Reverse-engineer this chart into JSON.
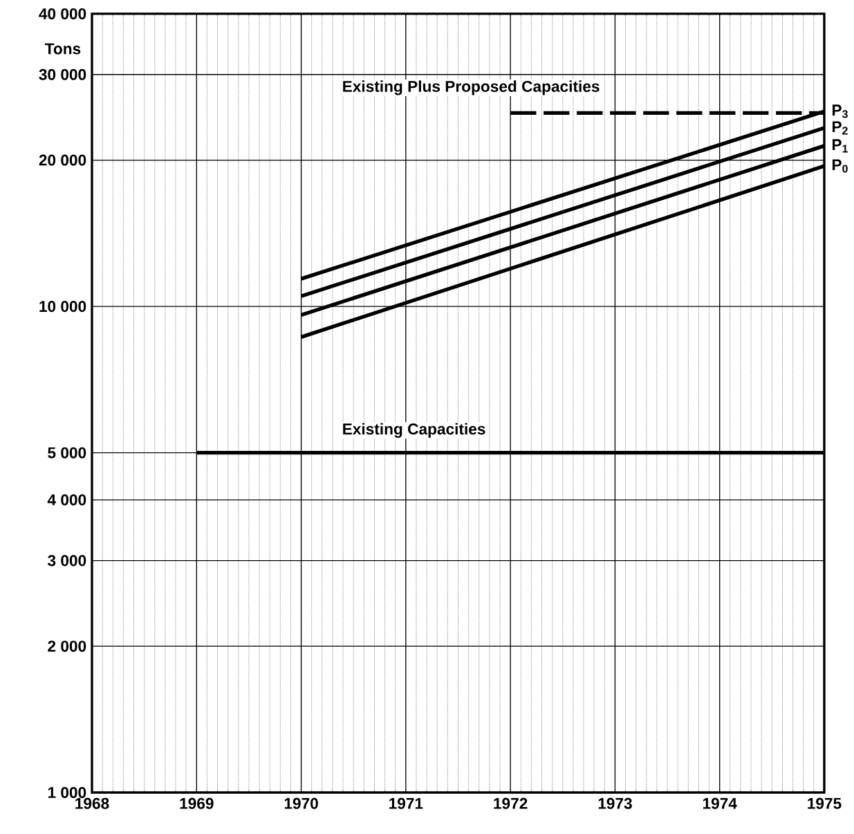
{
  "chart_data": {
    "type": "line",
    "ylabel": "Tons",
    "log": true,
    "grid": true,
    "line_style": "solid",
    "xlim": [
      1968,
      1975
    ],
    "xticks": [
      1968,
      1969,
      1970,
      1971,
      1972,
      1973,
      1974,
      1975
    ],
    "ylim": [
      1000,
      40000
    ],
    "yticks": [
      {
        "value": 1000,
        "label": "1 000"
      },
      {
        "value": 2000,
        "label": "2 000"
      },
      {
        "value": 3000,
        "label": "3 000"
      },
      {
        "value": 4000,
        "label": "4 000"
      },
      {
        "value": 5000,
        "label": "5 000"
      },
      {
        "value": 10000,
        "label": "10 000"
      },
      {
        "value": 20000,
        "label": "20 000"
      },
      {
        "value": 30000,
        "label": "30 000"
      },
      {
        "value": 40000,
        "label": "40 000"
      }
    ],
    "series": [
      {
        "color": "#000000",
        "x": [
          1969,
          1975
        ],
        "values": [
          5000,
          5000
        ]
      },
      {
        "name": "P$_{0}$",
        "color": "#000000",
        "x": [
          1970,
          1975
        ],
        "values": [
          8650,
          19450
        ]
      },
      {
        "name": "P$_{1}$",
        "color": "#000000",
        "x": [
          1970,
          1975
        ],
        "values": [
          9600,
          21400
        ]
      },
      {
        "name": "P$_{2}$",
        "color": "#000000",
        "x": [
          1970,
          1975
        ],
        "values": [
          10500,
          23300
        ]
      },
      {
        "name": "P$_{3}$",
        "color": "#000000",
        "x": [
          1970,
          1975
        ],
        "values": [
          11400,
          25200
        ]
      },
      {
        "color": "#000000",
        "line_style": "dashed",
        "x": [
          1972,
          1975
        ],
        "values": [
          25000,
          25000
        ]
      }
    ],
    "annotations": [
      "Existing Capacities",
      "Existing Plus Proposed Capacities"
    ]
  }
}
